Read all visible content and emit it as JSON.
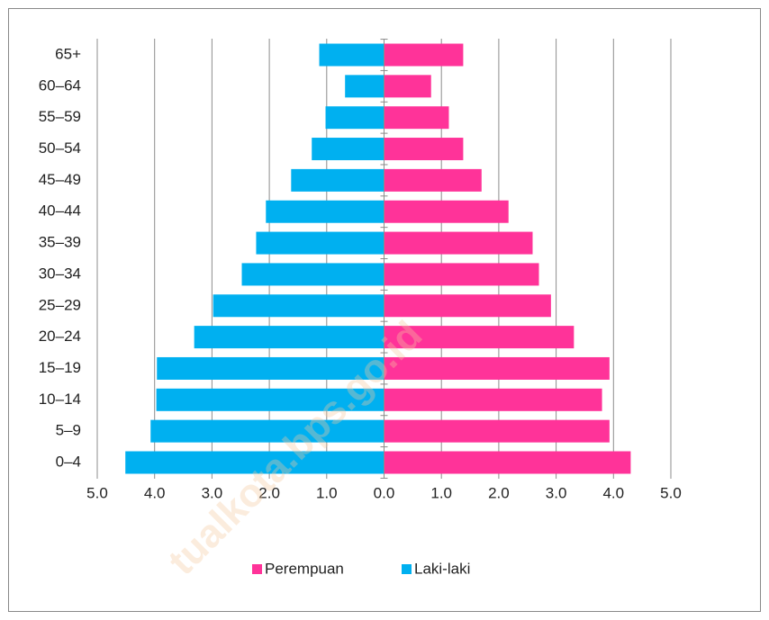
{
  "chart_data": {
    "type": "pyramid",
    "categories": [
      "0–4",
      "5–9",
      "10–14",
      "15–19",
      "20–24",
      "25–29",
      "30–34",
      "35–39",
      "40–44",
      "45–49",
      "50–54",
      "55–59",
      "60–64",
      "65+"
    ],
    "series": [
      {
        "name": "Perempuan",
        "color": "#ff3399",
        "values": [
          4.3,
          3.93,
          3.8,
          3.93,
          3.31,
          2.91,
          2.7,
          2.59,
          2.17,
          1.7,
          1.38,
          1.13,
          0.82,
          1.38
        ]
      },
      {
        "name": "Laki-laki",
        "color": "#00b0f0",
        "values": [
          -4.51,
          -4.07,
          -3.97,
          -3.96,
          -3.31,
          -2.98,
          -2.48,
          -2.23,
          -2.06,
          -1.62,
          -1.26,
          -1.02,
          -0.68,
          -1.13
        ]
      }
    ],
    "xlim": [
      -5,
      5
    ],
    "xticks": [
      {
        "value": -5,
        "label": "5.0"
      },
      {
        "value": -4,
        "label": "4.0"
      },
      {
        "value": -3,
        "label": "3.0"
      },
      {
        "value": -2,
        "label": "2.0"
      },
      {
        "value": -1,
        "label": "1.0"
      },
      {
        "value": 0,
        "label": "0.0"
      },
      {
        "value": 1,
        "label": "1.0"
      },
      {
        "value": 2,
        "label": "2.0"
      },
      {
        "value": 3,
        "label": "3.0"
      },
      {
        "value": 4,
        "label": "4.0"
      },
      {
        "value": 5,
        "label": "5.0"
      }
    ],
    "grid": true,
    "legend": "bottom",
    "watermark": "tualkota.bps.go.id"
  }
}
